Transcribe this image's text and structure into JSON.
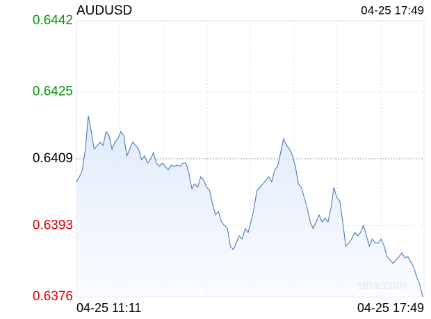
{
  "chart_data": {
    "type": "line",
    "title": "AUDUSD",
    "timestamp": "04-25 17:49",
    "watermark": "sina.com",
    "x_labels": [
      "04-25 11:11",
      "04-25 17:49"
    ],
    "ylim": [
      0.6376,
      0.6442
    ],
    "yticks": [
      0.6376,
      0.6393,
      0.6409,
      0.6425,
      0.6442
    ],
    "reference_line": 0.6409,
    "up_color": "#009900",
    "down_color": "#dd0000",
    "grid": true,
    "series": [
      {
        "name": "AUDUSD",
        "color": "#4a78c0",
        "values": [
          0.64035,
          0.64047,
          0.64064,
          0.64113,
          0.64193,
          0.64155,
          0.64113,
          0.64122,
          0.6413,
          0.64122,
          0.64155,
          0.64146,
          0.64113,
          0.6413,
          0.64138,
          0.64155,
          0.64146,
          0.64097,
          0.64113,
          0.6413,
          0.64122,
          0.64113,
          0.64088,
          0.64097,
          0.6408,
          0.64088,
          0.64105,
          0.6408,
          0.64072,
          0.6408,
          0.64072,
          0.64064,
          0.64075,
          0.64072,
          0.64075,
          0.64072,
          0.6408,
          0.6408,
          0.64055,
          0.64019,
          0.6403,
          0.64022,
          0.64047,
          0.64039,
          0.64022,
          0.64014,
          0.63981,
          0.63956,
          0.63964,
          0.63939,
          0.63931,
          0.63923,
          0.63881,
          0.63873,
          0.63889,
          0.63906,
          0.63898,
          0.63923,
          0.63914,
          0.63939,
          0.63972,
          0.64014,
          0.64022,
          0.6403,
          0.64039,
          0.64047,
          0.64035,
          0.64064,
          0.64072,
          0.64105,
          0.64138,
          0.64122,
          0.64113,
          0.64097,
          0.64072,
          0.6403,
          0.64022,
          0.63997,
          0.63972,
          0.63939,
          0.63923,
          0.63939,
          0.63956,
          0.63939,
          0.63948,
          0.63939,
          0.63972,
          0.64022,
          0.63997,
          0.63989,
          0.63939,
          0.63881,
          0.63889,
          0.63898,
          0.63914,
          0.63906,
          0.63914,
          0.63931,
          0.63906,
          0.63881,
          0.63898,
          0.63889,
          0.63889,
          0.63898,
          0.63881,
          0.63856,
          0.63848,
          0.6384,
          0.63848,
          0.63856,
          0.63865,
          0.63853,
          0.63856,
          0.63843,
          0.63831,
          0.63807,
          0.6379,
          0.6376
        ]
      }
    ]
  }
}
